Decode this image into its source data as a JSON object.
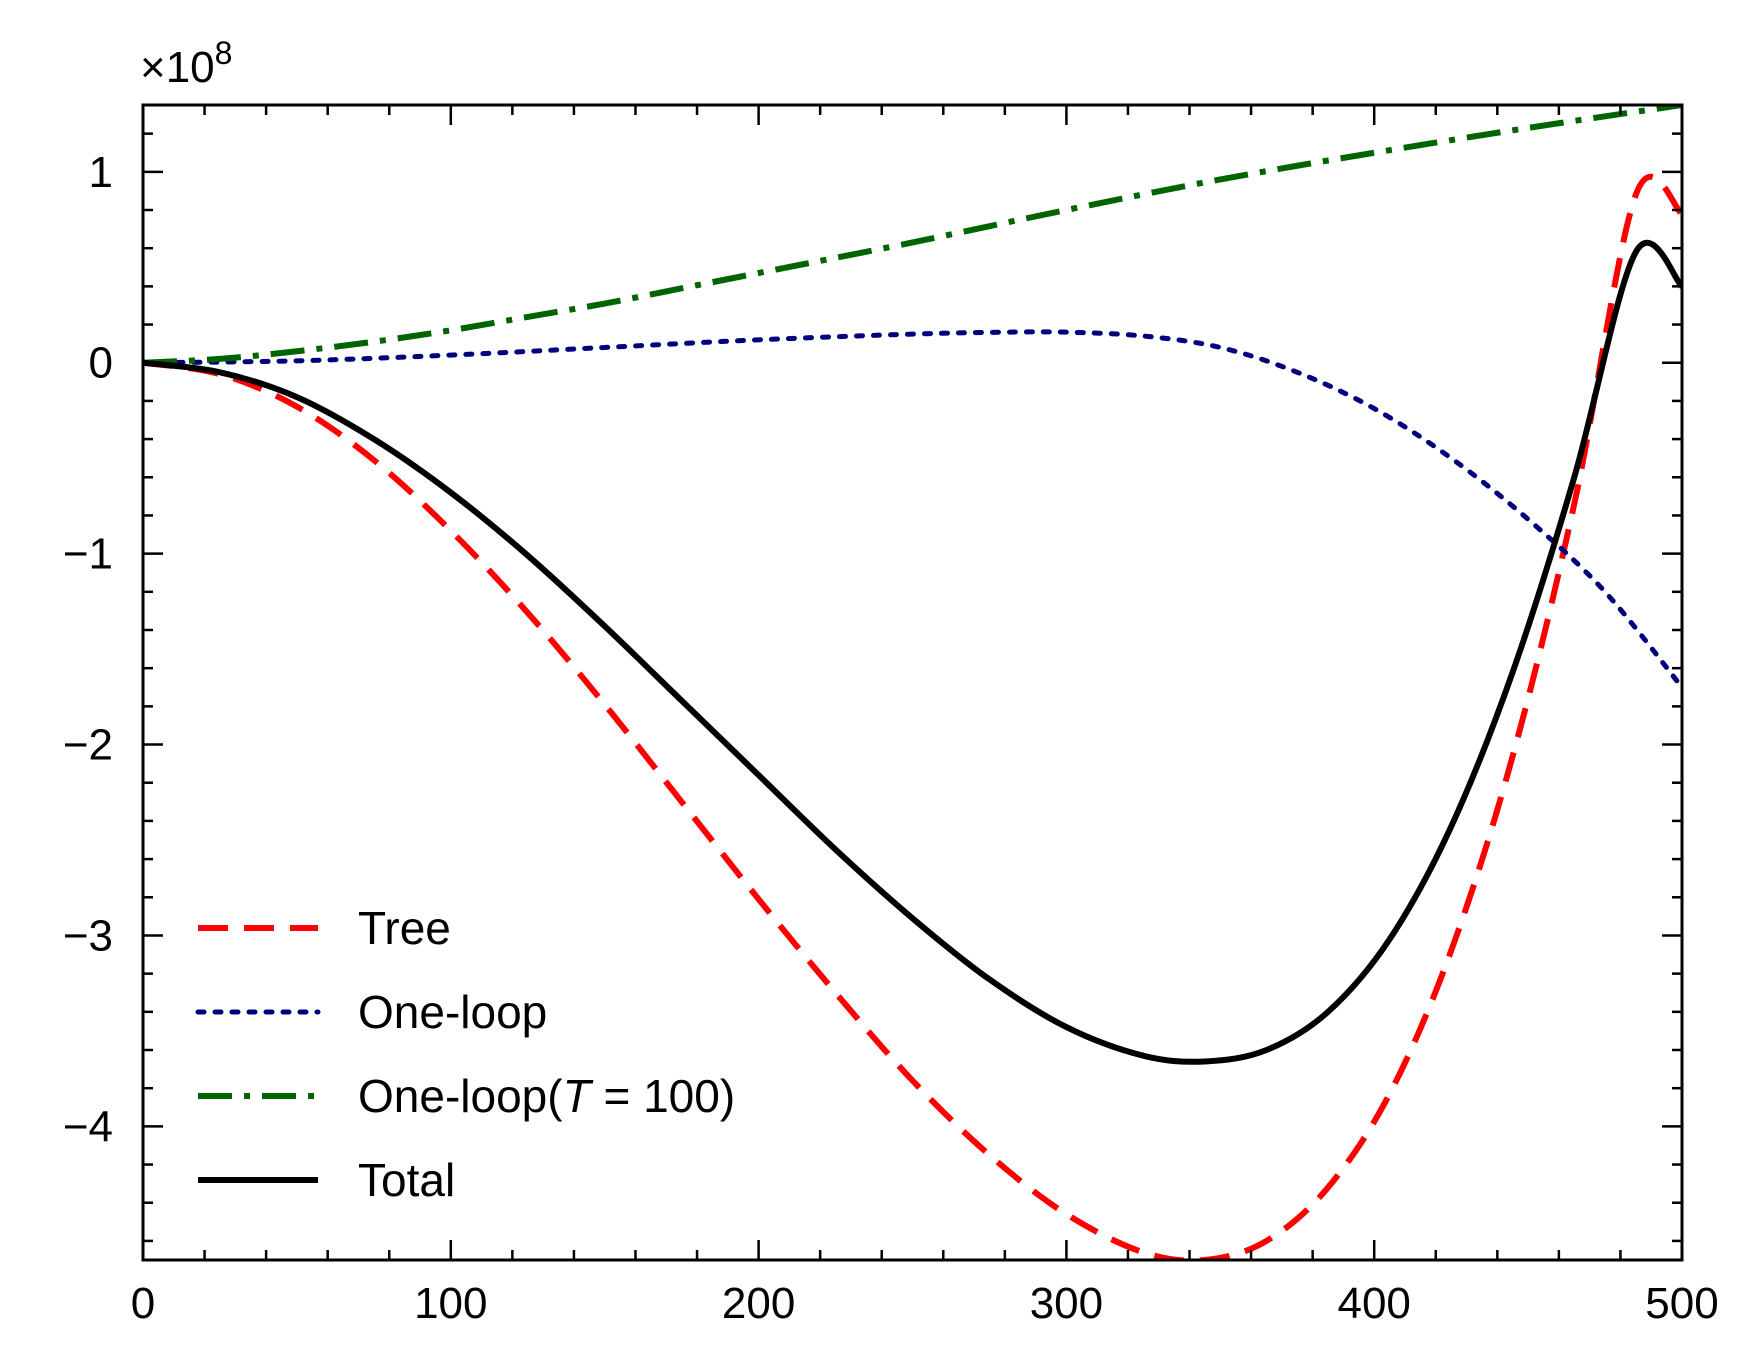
{
  "chart_data": {
    "type": "line",
    "title": "",
    "xlabel": "",
    "ylabel": "",
    "xlim": [
      0,
      500
    ],
    "ylim": [
      -4.7,
      1.35
    ],
    "y_scale_factor": "×10^8",
    "y_scale_text": "×10",
    "y_scale_exp": "8",
    "grid": false,
    "legend_position": "lower-left",
    "x_ticks": [
      {
        "value": 0,
        "label": "0"
      },
      {
        "value": 100,
        "label": "100"
      },
      {
        "value": 200,
        "label": "200"
      },
      {
        "value": 300,
        "label": "300"
      },
      {
        "value": 400,
        "label": "400"
      },
      {
        "value": 500,
        "label": "500"
      }
    ],
    "y_ticks": [
      {
        "value": 1,
        "label": "1"
      },
      {
        "value": 0,
        "label": "0"
      },
      {
        "value": -1,
        "label": "−1"
      },
      {
        "value": -2,
        "label": "−2"
      },
      {
        "value": -3,
        "label": "−3"
      },
      {
        "value": -4,
        "label": "−4"
      }
    ],
    "series": [
      {
        "name": "Tree",
        "color": "#ff0000",
        "style": "dashed",
        "x": [
          0,
          25,
          50,
          75,
          100,
          125,
          150,
          175,
          200,
          225,
          250,
          275,
          300,
          325,
          345,
          365,
          385,
          405,
          425,
          445,
          465,
          485,
          500
        ],
        "y": [
          0,
          -0.06,
          -0.23,
          -0.51,
          -0.88,
          -1.31,
          -1.79,
          -2.3,
          -2.81,
          -3.3,
          -3.76,
          -4.15,
          -4.46,
          -4.66,
          -4.7,
          -4.6,
          -4.32,
          -3.83,
          -3.08,
          -2.06,
          -0.74,
          0.88,
          0.78
        ]
      },
      {
        "name": "One-loop",
        "color": "#00007f",
        "style": "dotted",
        "x": [
          0,
          50,
          100,
          150,
          200,
          250,
          280,
          300,
          325,
          350,
          375,
          400,
          425,
          450,
          475,
          500
        ],
        "y": [
          0,
          0.01,
          0.04,
          0.08,
          0.12,
          0.15,
          0.16,
          0.16,
          0.14,
          0.08,
          -0.05,
          -0.24,
          -0.5,
          -0.82,
          -1.2,
          -1.7
        ]
      },
      {
        "name": "One-loop(T = 100)",
        "legend_text": "One-loop(",
        "legend_var": "T",
        "legend_suffix": " = 100)",
        "color": "#006400",
        "style": "dashdot",
        "x": [
          0,
          25,
          50,
          75,
          100,
          125,
          150,
          175,
          200,
          250,
          300,
          350,
          400,
          450,
          500
        ],
        "y": [
          0,
          0.02,
          0.06,
          0.11,
          0.17,
          0.24,
          0.31,
          0.39,
          0.47,
          0.63,
          0.8,
          0.96,
          1.1,
          1.23,
          1.35
        ]
      },
      {
        "name": "Total",
        "color": "#000000",
        "style": "solid",
        "x": [
          0,
          25,
          50,
          75,
          100,
          125,
          150,
          175,
          200,
          225,
          250,
          275,
          300,
          325,
          345,
          365,
          385,
          405,
          425,
          445,
          465,
          485,
          500
        ],
        "y": [
          0,
          -0.05,
          -0.18,
          -0.4,
          -0.68,
          -1.01,
          -1.38,
          -1.77,
          -2.16,
          -2.55,
          -2.91,
          -3.23,
          -3.48,
          -3.63,
          -3.66,
          -3.6,
          -3.4,
          -3.02,
          -2.43,
          -1.62,
          -0.6,
          0.58,
          0.4
        ]
      }
    ]
  }
}
